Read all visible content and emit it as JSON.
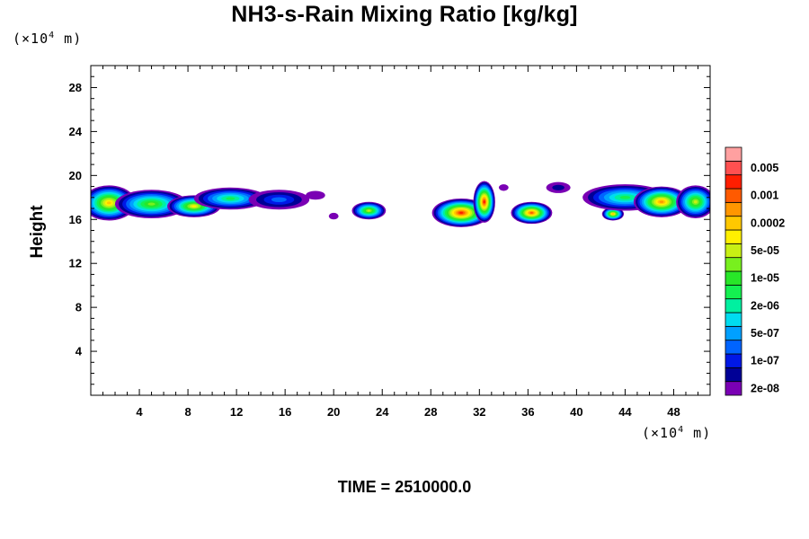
{
  "chart_data": {
    "type": "heatmap",
    "title": "NH3-s-Rain Mixing Ratio [kg/kg]",
    "ylabel": "Height",
    "xlabel": "",
    "x_unit": {
      "prefix": "(×10",
      "exp": "4",
      "suffix": " m)"
    },
    "y_unit": {
      "prefix": "(×10",
      "exp": "4",
      "suffix": " m)"
    },
    "xlim": [
      0,
      51
    ],
    "ylim": [
      0,
      30
    ],
    "x_ticks": [
      4,
      8,
      12,
      16,
      20,
      24,
      28,
      32,
      36,
      40,
      44,
      48
    ],
    "y_ticks": [
      4,
      8,
      12,
      16,
      20,
      24,
      28
    ],
    "grid": false,
    "time_label": "TIME = 2510000.0",
    "colorbar": {
      "position": "right",
      "levels": [
        "2e-08",
        "5e-08",
        "1e-07",
        "2e-07",
        "5e-07",
        "1e-06",
        "2e-06",
        "5e-06",
        "1e-05",
        "2e-05",
        "5e-05",
        "0.0001",
        "0.0002",
        "0.0005",
        "0.001",
        "0.002",
        "0.005",
        "0.01"
      ],
      "labels": [
        "2e-08",
        "1e-07",
        "5e-07",
        "2e-06",
        "1e-05",
        "5e-05",
        "0.0002",
        "0.001",
        "0.005"
      ],
      "colors": [
        "#7a00b4",
        "#000096",
        "#0018e6",
        "#0064ff",
        "#00a0ff",
        "#00dcf0",
        "#00f0a0",
        "#14f050",
        "#28e628",
        "#78f01e",
        "#c8f014",
        "#fff000",
        "#ffc800",
        "#ff9600",
        "#ff5a00",
        "#ff1e00",
        "#ff5050",
        "#ffa0a0"
      ]
    },
    "clouds": [
      {
        "x": 1.5,
        "y": 17.5,
        "rx": 2.2,
        "ry": 1.6,
        "peak": 12
      },
      {
        "x": 5.0,
        "y": 17.4,
        "rx": 3.0,
        "ry": 1.3,
        "peak": 9
      },
      {
        "x": 8.5,
        "y": 17.2,
        "rx": 2.2,
        "ry": 1.0,
        "peak": 11
      },
      {
        "x": 11.5,
        "y": 17.9,
        "rx": 3.0,
        "ry": 1.0,
        "peak": 7
      },
      {
        "x": 15.5,
        "y": 17.8,
        "rx": 2.5,
        "ry": 0.9,
        "peak": 3
      },
      {
        "x": 18.5,
        "y": 18.2,
        "rx": 0.8,
        "ry": 0.4,
        "peak": 0
      },
      {
        "x": 20.0,
        "y": 16.3,
        "rx": 0.4,
        "ry": 0.3,
        "peak": 0
      },
      {
        "x": 22.9,
        "y": 16.8,
        "rx": 1.4,
        "ry": 0.8,
        "peak": 10
      },
      {
        "x": 30.5,
        "y": 16.6,
        "rx": 2.4,
        "ry": 1.3,
        "peak": 15
      },
      {
        "x": 32.4,
        "y": 17.6,
        "rx": 0.9,
        "ry": 1.9,
        "peak": 15
      },
      {
        "x": 36.3,
        "y": 16.6,
        "rx": 1.7,
        "ry": 1.0,
        "peak": 14
      },
      {
        "x": 34.0,
        "y": 18.9,
        "rx": 0.4,
        "ry": 0.3,
        "peak": 0
      },
      {
        "x": 38.5,
        "y": 18.9,
        "rx": 1.0,
        "ry": 0.5,
        "peak": 1
      },
      {
        "x": 43.0,
        "y": 16.5,
        "rx": 0.9,
        "ry": 0.6,
        "peak": 12
      },
      {
        "x": 44.0,
        "y": 18.0,
        "rx": 3.5,
        "ry": 1.2,
        "peak": 7
      },
      {
        "x": 47.0,
        "y": 17.6,
        "rx": 2.3,
        "ry": 1.4,
        "peak": 13
      },
      {
        "x": 49.8,
        "y": 17.6,
        "rx": 1.6,
        "ry": 1.5,
        "peak": 10
      }
    ]
  }
}
